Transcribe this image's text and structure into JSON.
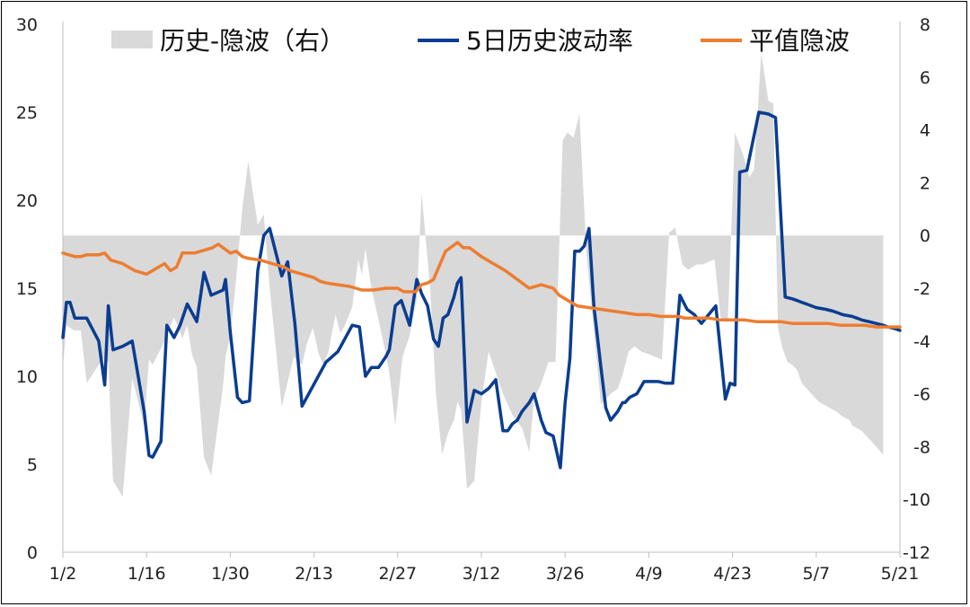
{
  "chart_data": {
    "type": "line",
    "title": "",
    "xlabel": "",
    "ylabel": "",
    "x_ticks": [
      "1/2",
      "1/16",
      "1/30",
      "2/13",
      "2/27",
      "3/12",
      "3/26",
      "4/9",
      "4/23",
      "5/7",
      "5/21"
    ],
    "ylim_left": [
      0,
      30
    ],
    "yticks_left": [
      "0",
      "5",
      "10",
      "15",
      "20",
      "25",
      "30"
    ],
    "ylim_right": [
      -12,
      8
    ],
    "yticks_right": [
      "-12",
      "-10",
      "-8",
      "-6",
      "-4",
      "-2",
      "0",
      "2",
      "4",
      "6",
      "8"
    ],
    "legend": {
      "placement": "top"
    },
    "series": [
      {
        "name": "历史-隐波（右）",
        "axis": "right",
        "style": "area",
        "color": "#d9d9d9",
        "x": [
          0.0,
          0.3,
          0.6,
          1.0,
          1.5,
          2.0,
          3.0,
          3.5,
          3.8,
          4.2,
          5.0,
          5.8,
          6.8,
          7.2,
          7.5,
          8.3,
          9.3,
          10.0,
          10.4,
          10.8,
          11.2,
          11.8,
          12.4,
          13.4,
          13.6,
          14.0,
          14.5,
          15.0,
          15.5,
          16.3,
          16.8,
          17.3,
          18.3,
          19.3,
          20.0,
          20.4,
          20.9,
          21.4,
          21.8,
          22.2,
          22.8,
          23.2,
          23.6,
          24.2,
          24.7,
          25.0,
          25.3,
          25.8,
          26.4,
          27.0,
          27.3,
          27.8,
          28.4,
          29.0,
          29.6,
          30.0,
          30.7,
          31.2,
          31.7,
          32.2,
          32.7,
          33.0,
          33.3,
          33.8,
          34.4,
          35.0,
          35.6,
          36.2,
          36.8,
          37.6,
          38.4,
          39.0,
          39.4,
          40.0,
          40.6,
          41.2,
          41.8,
          42.2,
          42.7,
          43.2,
          43.8,
          44.4,
          45.0,
          45.4,
          45.8,
          46.4,
          46.8,
          47.3,
          47.8,
          48.4,
          49.0,
          49.5,
          50.1,
          50.7,
          51.2,
          51.8,
          52.3,
          53.0,
          53.5,
          54.0,
          54.5,
          55.0,
          55.6,
          56.2,
          57.0,
          57.4,
          57.8,
          58.4,
          59.0,
          59.4,
          59.8,
          60.2,
          60.6,
          61.0,
          61.4,
          61.8,
          62.2,
          62.6,
          62.8,
          63.2,
          63.6,
          64.0,
          64.4,
          64.8,
          65.0,
          65.4,
          65.8,
          66.0,
          66.4,
          66.8,
          67.2,
          67.6,
          68.0,
          68.6
        ],
        "values": [
          -5.0,
          -3.4,
          -3.5,
          -3.6,
          -3.6,
          -5.6,
          -4.9,
          -4.6,
          -4.8,
          -9.3,
          -9.9,
          -5.4,
          -7.2,
          -4.7,
          -4.9,
          -4.2,
          -3.1,
          -3.9,
          -3.4,
          -4.5,
          -5.0,
          -8.4,
          -9.1,
          -5.7,
          -4.6,
          -3.8,
          -1.6,
          1.0,
          2.8,
          0.4,
          0.8,
          -2.0,
          -6.5,
          -4.6,
          -4.9,
          -4.1,
          -3.5,
          -4.5,
          -4.9,
          -4.4,
          -3.0,
          -3.7,
          -3.4,
          -2.7,
          -0.9,
          -1.5,
          -0.5,
          -2.0,
          -3.2,
          -4.5,
          -5.2,
          -7.2,
          -4.6,
          -3.8,
          -2.4,
          1.6,
          -1.9,
          -6.0,
          -8.3,
          -7.5,
          -7.0,
          -6.3,
          -6.6,
          -9.6,
          -9.3,
          -6.3,
          -4.4,
          -5.2,
          -6.0,
          -6.8,
          -7.3,
          -8.2,
          -6.2,
          -5.6,
          -4.8,
          -4.8,
          3.6,
          3.9,
          3.7,
          4.6,
          -0.8,
          -3.6,
          -6.4,
          -6.2,
          -6.0,
          -5.8,
          -5.3,
          -4.4,
          -4.2,
          -4.4,
          -4.5,
          -4.6,
          -4.7,
          0.1,
          0.3,
          -1.1,
          -1.3,
          -1.1,
          -1.1,
          -1.0,
          -0.9,
          -3.1,
          -3.3,
          3.9,
          2.9,
          2.2,
          2.5,
          6.9,
          5.1,
          5.0,
          -3.5,
          -4.3,
          -4.8,
          -4.9,
          -5.1,
          -5.6,
          -5.8,
          -6.0,
          -6.1,
          -6.3,
          -6.4,
          -6.5,
          -6.6,
          -6.7,
          -6.8,
          -6.9,
          -7.0,
          -7.2,
          -7.3,
          -7.4,
          -7.6,
          -7.8,
          -8.0,
          -8.3
        ]
      },
      {
        "name": "5日历史波动率",
        "axis": "left",
        "style": "line",
        "color": "#0a3d91",
        "x": [
          0.0,
          0.3,
          0.6,
          1.0,
          1.6,
          2.0,
          3.0,
          3.5,
          3.8,
          4.2,
          5.0,
          5.8,
          6.8,
          7.2,
          7.5,
          8.2,
          8.7,
          9.3,
          9.8,
          10.4,
          11.2,
          11.8,
          12.4,
          13.4,
          13.6,
          14.0,
          14.6,
          15.0,
          15.6,
          16.3,
          16.8,
          17.3,
          18.3,
          18.8,
          19.4,
          20.0,
          22.0,
          23.0,
          24.2,
          24.8,
          25.3,
          25.8,
          26.4,
          27.0,
          27.3,
          27.8,
          28.3,
          29.0,
          29.6,
          30.0,
          30.5,
          31.0,
          31.4,
          31.8,
          32.2,
          32.7,
          33.0,
          33.3,
          33.8,
          34.4,
          35.0,
          35.6,
          36.2,
          36.8,
          37.2,
          37.6,
          38.0,
          38.4,
          39.0,
          39.4,
          40.0,
          40.4,
          41.0,
          41.6,
          42.0,
          42.4,
          42.8,
          43.2,
          43.6,
          44.0,
          44.4,
          45.0,
          45.4,
          45.8,
          46.4,
          46.8,
          47.0,
          47.4,
          48.0,
          48.6,
          49.2,
          49.8,
          50.4,
          51.0,
          51.6,
          52.2,
          52.8,
          53.4,
          54.0,
          54.6,
          55.4,
          55.8,
          56.2,
          56.6,
          57.2,
          58.2,
          59.0,
          59.6,
          60.4,
          61.0,
          61.4,
          61.8,
          62.2,
          62.6,
          63.0,
          63.8,
          64.4,
          64.8,
          65.2,
          66.0,
          66.4,
          66.8,
          67.4,
          68.0,
          68.6,
          69.0,
          69.6,
          70.0
        ],
        "values": [
          12.2,
          14.2,
          14.2,
          13.3,
          13.3,
          13.3,
          12.0,
          9.5,
          14.0,
          11.5,
          11.7,
          12.0,
          8.0,
          5.5,
          5.4,
          6.3,
          12.9,
          12.2,
          12.9,
          14.1,
          13.1,
          15.9,
          14.6,
          14.9,
          15.5,
          12.5,
          8.8,
          8.5,
          8.6,
          16.0,
          18.0,
          18.4,
          15.7,
          16.5,
          13.0,
          8.3,
          10.8,
          11.4,
          12.9,
          12.8,
          10.0,
          10.5,
          10.5,
          11.1,
          11.5,
          14.0,
          14.3,
          12.9,
          15.5,
          14.7,
          14.0,
          12.1,
          11.7,
          13.3,
          13.5,
          14.5,
          15.3,
          15.6,
          7.4,
          9.2,
          9.0,
          9.3,
          9.8,
          6.9,
          6.9,
          7.3,
          7.5,
          8.0,
          8.5,
          9.0,
          7.5,
          6.8,
          6.6,
          4.8,
          8.5,
          11.0,
          17.1,
          17.1,
          17.4,
          18.4,
          14.0,
          10.5,
          8.2,
          7.5,
          8.0,
          8.5,
          8.5,
          8.8,
          9.0,
          9.7,
          9.7,
          9.7,
          9.6,
          9.6,
          14.6,
          13.8,
          13.5,
          13.0,
          13.5,
          14.0,
          8.7,
          9.6,
          9.5,
          21.6,
          21.7,
          25.0,
          24.9,
          24.7,
          14.5,
          14.4,
          14.3,
          14.2,
          14.1,
          14.0,
          13.9,
          13.8,
          13.7,
          13.6,
          13.5,
          13.4,
          13.3,
          13.2,
          13.1,
          13.0,
          12.9,
          12.8,
          12.7,
          12.6
        ],
        "note": ""
      },
      {
        "name": "平值隐波",
        "axis": "left",
        "style": "line",
        "color": "#ed7d31",
        "x": [
          0.0,
          0.5,
          1.0,
          1.5,
          2.0,
          3.0,
          3.5,
          4.0,
          5.0,
          6.0,
          7.0,
          8.0,
          8.5,
          9.0,
          9.5,
          10.0,
          11.0,
          12.0,
          12.5,
          13.0,
          14.0,
          14.5,
          15.0,
          15.5,
          16.5,
          17.0,
          17.5,
          18.0,
          18.5,
          19.0,
          20.0,
          21.0,
          21.5,
          22.0,
          23.0,
          24.0,
          24.5,
          25.0,
          26.0,
          27.0,
          28.0,
          28.5,
          29.0,
          29.5,
          30.0,
          30.5,
          31.0,
          32.0,
          33.0,
          33.5,
          34.0,
          35.0,
          36.0,
          37.0,
          38.0,
          39.0,
          40.0,
          41.0,
          41.5,
          42.0,
          43.0,
          44.0,
          45.0,
          46.0,
          47.0,
          48.0,
          49.0,
          50.0,
          51.0,
          51.5,
          52.0,
          53.0,
          54.0,
          55.0,
          56.0,
          57.0,
          58.0,
          59.0,
          60.0,
          61.0,
          62.0,
          63.0,
          64.0,
          65.0,
          66.0,
          67.0,
          68.0,
          69.0,
          70.0
        ],
        "values": [
          17.0,
          16.9,
          16.8,
          16.8,
          16.9,
          16.9,
          17.0,
          16.6,
          16.4,
          16.0,
          15.8,
          16.2,
          16.4,
          16.0,
          16.2,
          17.0,
          17.0,
          17.2,
          17.3,
          17.5,
          17.0,
          17.1,
          16.8,
          16.7,
          16.6,
          16.5,
          16.4,
          16.3,
          16.2,
          16.0,
          15.8,
          15.6,
          15.4,
          15.3,
          15.2,
          15.1,
          15.0,
          14.9,
          14.9,
          15.0,
          15.0,
          14.8,
          14.8,
          14.8,
          15.2,
          15.3,
          15.5,
          17.1,
          17.6,
          17.3,
          17.3,
          16.8,
          16.4,
          16.0,
          15.5,
          15.0,
          15.2,
          15.0,
          14.6,
          14.4,
          14.0,
          13.9,
          13.8,
          13.7,
          13.6,
          13.5,
          13.5,
          13.4,
          13.4,
          13.4,
          13.3,
          13.3,
          13.3,
          13.2,
          13.2,
          13.2,
          13.1,
          13.1,
          13.1,
          13.0,
          13.0,
          13.0,
          13.0,
          12.9,
          12.9,
          12.9,
          12.8,
          12.8,
          12.8
        ]
      }
    ]
  }
}
